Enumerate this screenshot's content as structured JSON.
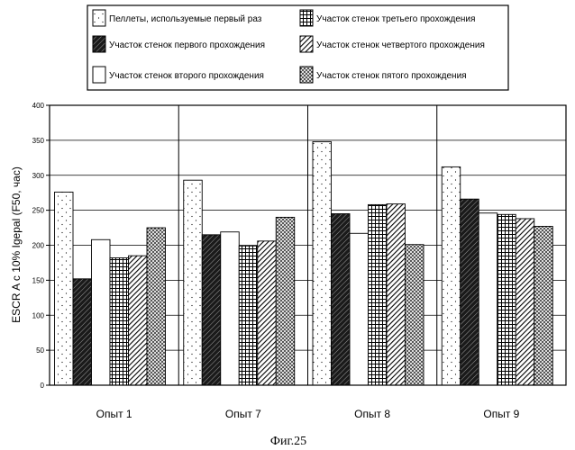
{
  "chart_data": {
    "type": "bar",
    "title": "",
    "caption": "Фиг.25",
    "xlabel": "",
    "ylabel": "ESCR A c  10% Igepal (F50, час)",
    "ylim": [
      0,
      400
    ],
    "yticks": [
      0,
      50,
      100,
      150,
      200,
      250,
      300,
      350,
      400
    ],
    "grid": true,
    "legend_position": "top",
    "categories": [
      "Опыт 1",
      "Опыт 7",
      "Опыт 8",
      "Опыт 9"
    ],
    "series": [
      {
        "name": "Пеллеты, используемые первый раз",
        "pattern": "dots",
        "values": [
          276,
          293,
          348,
          312
        ]
      },
      {
        "name": "Участок стенок первого прохождения",
        "pattern": "dark-diagonal",
        "values": [
          152,
          215,
          245,
          266
        ]
      },
      {
        "name": "Участок стенок второго прохождения",
        "pattern": "blank",
        "values": [
          208,
          219,
          217,
          246
        ]
      },
      {
        "name": "Участок стенок третьего прохождения",
        "pattern": "grid",
        "values": [
          182,
          199,
          258,
          244
        ]
      },
      {
        "name": "Участок стенок четвертого прохождения",
        "pattern": "diagonal",
        "values": [
          185,
          206,
          259,
          238
        ]
      },
      {
        "name": "Участок стенок пятого прохождения",
        "pattern": "crosshatch",
        "values": [
          225,
          240,
          201,
          227
        ]
      }
    ]
  }
}
